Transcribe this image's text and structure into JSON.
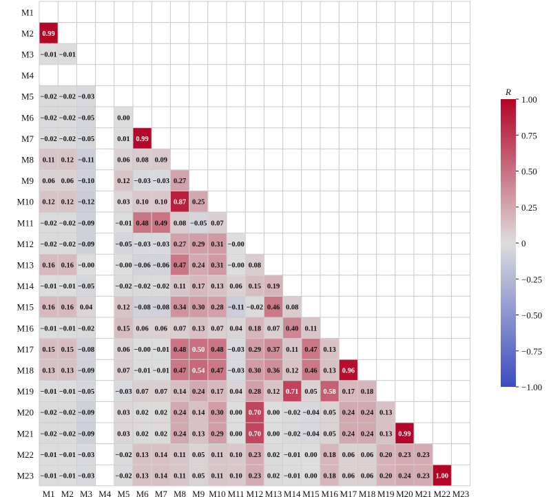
{
  "chart_data": {
    "type": "heatmap",
    "layout": "lower-triangle correlation matrix",
    "labels": [
      "M1",
      "M2",
      "M3",
      "M4",
      "M5",
      "M6",
      "M7",
      "M8",
      "M9",
      "M10",
      "M11",
      "M12",
      "M13",
      "M14",
      "M15",
      "M16",
      "M17",
      "M18",
      "M19",
      "M20",
      "M21",
      "M22",
      "M23"
    ],
    "rows": [
      [],
      [
        0.99
      ],
      [
        -0.01,
        -0.01
      ],
      [
        null,
        null,
        null
      ],
      [
        -0.02,
        -0.02,
        -0.03,
        null
      ],
      [
        -0.02,
        -0.02,
        -0.05,
        null,
        0.0
      ],
      [
        -0.02,
        -0.02,
        -0.05,
        null,
        0.01,
        0.99
      ],
      [
        0.11,
        0.12,
        -0.11,
        null,
        0.06,
        0.08,
        0.09
      ],
      [
        0.06,
        0.06,
        -0.1,
        null,
        0.12,
        -0.03,
        -0.03,
        0.27
      ],
      [
        0.12,
        0.12,
        -0.12,
        null,
        0.03,
        0.1,
        0.1,
        0.87,
        0.25
      ],
      [
        -0.02,
        -0.02,
        -0.09,
        null,
        -0.01,
        0.48,
        0.49,
        0.08,
        -0.05,
        0.07
      ],
      [
        -0.02,
        -0.02,
        -0.09,
        null,
        -0.05,
        -0.03,
        -0.03,
        0.27,
        0.29,
        0.31,
        -0.0
      ],
      [
        0.16,
        0.16,
        -0.0,
        null,
        -0.0,
        -0.06,
        -0.06,
        0.47,
        0.24,
        0.31,
        -0.0,
        0.08
      ],
      [
        -0.01,
        -0.01,
        -0.05,
        null,
        -0.02,
        -0.02,
        -0.02,
        0.11,
        0.17,
        0.13,
        0.06,
        0.15,
        0.19
      ],
      [
        0.16,
        0.16,
        0.04,
        null,
        0.12,
        -0.08,
        -0.08,
        0.34,
        0.3,
        0.28,
        -0.11,
        -0.02,
        0.46,
        0.08
      ],
      [
        -0.01,
        -0.01,
        -0.02,
        null,
        0.15,
        0.06,
        0.06,
        0.07,
        0.13,
        0.07,
        0.04,
        0.18,
        0.07,
        0.4,
        0.11
      ],
      [
        0.15,
        0.15,
        -0.08,
        null,
        0.06,
        -0.0,
        -0.01,
        0.48,
        0.5,
        0.48,
        -0.03,
        0.29,
        0.37,
        0.11,
        0.47,
        0.13
      ],
      [
        0.13,
        0.13,
        -0.09,
        null,
        0.07,
        -0.01,
        -0.01,
        0.47,
        0.54,
        0.47,
        -0.03,
        0.3,
        0.36,
        0.12,
        0.46,
        0.13,
        0.96
      ],
      [
        -0.01,
        -0.01,
        -0.05,
        null,
        -0.03,
        0.07,
        0.07,
        0.14,
        0.24,
        0.17,
        0.04,
        0.28,
        0.12,
        0.71,
        0.05,
        0.58,
        0.17,
        0.18
      ],
      [
        -0.02,
        -0.02,
        -0.09,
        null,
        0.03,
        0.02,
        0.02,
        0.24,
        0.14,
        0.3,
        0.0,
        0.7,
        0.0,
        -0.02,
        -0.04,
        0.05,
        0.24,
        0.24,
        0.13
      ],
      [
        -0.02,
        -0.02,
        -0.09,
        null,
        0.03,
        0.02,
        0.02,
        0.24,
        0.13,
        0.29,
        0.0,
        0.7,
        0.0,
        -0.02,
        -0.04,
        0.05,
        0.24,
        0.24,
        0.13,
        0.99
      ],
      [
        -0.01,
        -0.01,
        -0.03,
        null,
        -0.02,
        0.13,
        0.14,
        0.11,
        0.05,
        0.11,
        0.1,
        0.23,
        0.02,
        -0.01,
        0.0,
        0.18,
        0.06,
        0.06,
        0.2,
        0.23,
        0.23
      ],
      [
        -0.01,
        -0.01,
        -0.03,
        null,
        -0.02,
        0.13,
        0.14,
        0.11,
        0.05,
        0.11,
        0.1,
        0.23,
        0.02,
        -0.01,
        0.0,
        0.18,
        0.06,
        0.06,
        0.2,
        0.24,
        0.23,
        1.0
      ]
    ],
    "colorbar": {
      "title": "R",
      "range": [
        -1.0,
        1.0
      ],
      "ticks": [
        "1.00",
        "0.75",
        "0.50",
        "0.25",
        "0",
        "−0.25",
        "−0.50",
        "−0.75",
        "−1.00"
      ],
      "colormap": "coolwarm",
      "colors": {
        "low": "#3b4cc0",
        "mid": "#dddddd",
        "high": "#b40426"
      }
    }
  }
}
